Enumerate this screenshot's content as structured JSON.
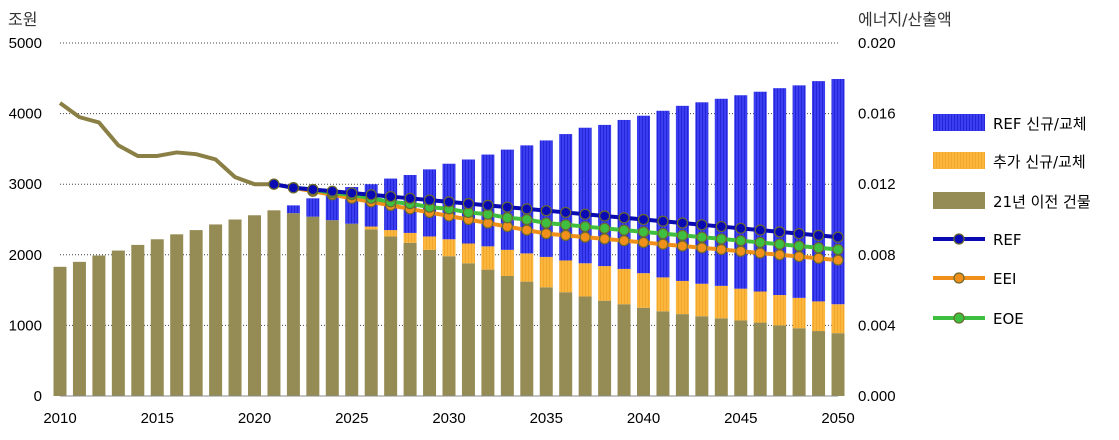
{
  "chart_data": {
    "type": "bar",
    "y_left_unit": "조원",
    "y_right_unit": "에너지/산출액",
    "ylim_left": [
      0,
      5000
    ],
    "ylim_right": [
      0.0,
      0.02
    ],
    "y_left_ticks": [
      "0",
      "1000",
      "2000",
      "3000",
      "4000",
      "5000"
    ],
    "y_right_ticks": [
      "0.000",
      "0.004",
      "0.008",
      "0.012",
      "0.016",
      "0.020"
    ],
    "x_ticks": [
      "2010",
      "2015",
      "2020",
      "2025",
      "2030",
      "2035",
      "2040",
      "2045",
      "2050"
    ],
    "grid": true,
    "legend_position": "right",
    "years": [
      2010,
      2011,
      2012,
      2013,
      2014,
      2015,
      2016,
      2017,
      2018,
      2019,
      2020,
      2021,
      2022,
      2023,
      2024,
      2025,
      2026,
      2027,
      2028,
      2029,
      2030,
      2031,
      2032,
      2033,
      2034,
      2035,
      2036,
      2037,
      2038,
      2039,
      2040,
      2041,
      2042,
      2043,
      2044,
      2045,
      2046,
      2047,
      2048,
      2049,
      2050
    ],
    "bar_series": [
      {
        "name": "21년 이전 건물",
        "color": "#958c55",
        "values": [
          1830,
          1900,
          1990,
          2060,
          2140,
          2220,
          2290,
          2350,
          2430,
          2500,
          2560,
          2630,
          2590,
          2540,
          2490,
          2440,
          2360,
          2260,
          2170,
          2070,
          1980,
          1880,
          1790,
          1700,
          1620,
          1540,
          1470,
          1410,
          1350,
          1300,
          1250,
          1200,
          1160,
          1130,
          1100,
          1070,
          1040,
          1000,
          960,
          920,
          890
        ]
      },
      {
        "name": "추가 신규/교체",
        "color": "#fbb63e",
        "values": [
          0,
          0,
          0,
          0,
          0,
          0,
          0,
          0,
          0,
          0,
          0,
          0,
          0,
          0,
          0,
          0,
          40,
          90,
          140,
          190,
          240,
          280,
          330,
          370,
          400,
          430,
          450,
          470,
          490,
          500,
          490,
          480,
          470,
          460,
          460,
          450,
          440,
          430,
          430,
          420,
          410
        ]
      },
      {
        "name": "REF 신규/교체",
        "color": "#3b3df0",
        "values": [
          0,
          0,
          0,
          0,
          0,
          0,
          0,
          0,
          0,
          0,
          0,
          0,
          110,
          260,
          400,
          520,
          600,
          730,
          820,
          950,
          1070,
          1190,
          1300,
          1420,
          1530,
          1650,
          1790,
          1920,
          2000,
          2110,
          2230,
          2360,
          2480,
          2570,
          2650,
          2740,
          2830,
          2930,
          3010,
          3120,
          3190
        ]
      }
    ],
    "line_series": [
      {
        "name": "REF",
        "color": "#0a0ab4",
        "marker": true,
        "x": [
          2021,
          2022,
          2023,
          2024,
          2025,
          2026,
          2027,
          2028,
          2029,
          2030,
          2031,
          2032,
          2033,
          2034,
          2035,
          2036,
          2037,
          2038,
          2039,
          2040,
          2041,
          2042,
          2043,
          2044,
          2045,
          2046,
          2047,
          2048,
          2049,
          2050
        ],
        "values": [
          0.012,
          0.0118,
          0.0117,
          0.0116,
          0.0115,
          0.0114,
          0.0113,
          0.0112,
          0.0111,
          0.011,
          0.0109,
          0.0108,
          0.0107,
          0.0106,
          0.0105,
          0.0104,
          0.0103,
          0.0102,
          0.0101,
          0.01,
          0.0099,
          0.0098,
          0.0097,
          0.0096,
          0.0095,
          0.0094,
          0.0093,
          0.0092,
          0.0091,
          0.009
        ]
      },
      {
        "name": "EEI",
        "color": "#f0901a",
        "marker": true,
        "x": [
          2021,
          2022,
          2023,
          2024,
          2025,
          2026,
          2027,
          2028,
          2029,
          2030,
          2031,
          2032,
          2033,
          2034,
          2035,
          2036,
          2037,
          2038,
          2039,
          2040,
          2041,
          2042,
          2043,
          2044,
          2045,
          2046,
          2047,
          2048,
          2049,
          2050
        ],
        "values": [
          0.012,
          0.0118,
          0.0116,
          0.0114,
          0.0112,
          0.011,
          0.0108,
          0.0106,
          0.0104,
          0.0102,
          0.01,
          0.0098,
          0.0096,
          0.0094,
          0.0092,
          0.0091,
          0.009,
          0.0089,
          0.0088,
          0.0087,
          0.0086,
          0.0085,
          0.0084,
          0.0083,
          0.0082,
          0.0081,
          0.008,
          0.0079,
          0.0078,
          0.0077
        ]
      },
      {
        "name": "EOE",
        "color": "#3fbf3f",
        "marker": true,
        "x": [
          2021,
          2022,
          2023,
          2024,
          2025,
          2026,
          2027,
          2028,
          2029,
          2030,
          2031,
          2032,
          2033,
          2034,
          2035,
          2036,
          2037,
          2038,
          2039,
          2040,
          2041,
          2042,
          2043,
          2044,
          2045,
          2046,
          2047,
          2048,
          2049,
          2050
        ],
        "values": [
          0.012,
          0.0118,
          0.0117,
          0.0115,
          0.0114,
          0.0112,
          0.011,
          0.0109,
          0.0107,
          0.0106,
          0.0104,
          0.0103,
          0.0101,
          0.01,
          0.0098,
          0.0097,
          0.0096,
          0.0095,
          0.0094,
          0.0093,
          0.0092,
          0.0091,
          0.009,
          0.0089,
          0.0088,
          0.0087,
          0.0086,
          0.0085,
          0.0084,
          0.0083
        ]
      },
      {
        "name": "",
        "color": "#8a7f45",
        "marker": false,
        "x": [
          2010,
          2011,
          2012,
          2013,
          2014,
          2015,
          2016,
          2017,
          2018,
          2019,
          2020,
          2021
        ],
        "values": [
          0.0166,
          0.0158,
          0.0155,
          0.0142,
          0.0136,
          0.0136,
          0.0138,
          0.0137,
          0.0134,
          0.0124,
          0.012,
          0.012
        ]
      }
    ],
    "legend": [
      {
        "label": "REF 신규/교체",
        "kind": "bar",
        "color": "#3b3df0"
      },
      {
        "label": "추가 신규/교체",
        "kind": "bar",
        "color": "#fbb63e"
      },
      {
        "label": "21년 이전 건물",
        "kind": "bar",
        "color": "#958c55"
      },
      {
        "label": "REF",
        "kind": "line",
        "color": "#0a0ab4"
      },
      {
        "label": "EEI",
        "kind": "line",
        "color": "#f0901a"
      },
      {
        "label": "EOE",
        "kind": "line",
        "color": "#3fbf3f"
      }
    ]
  }
}
